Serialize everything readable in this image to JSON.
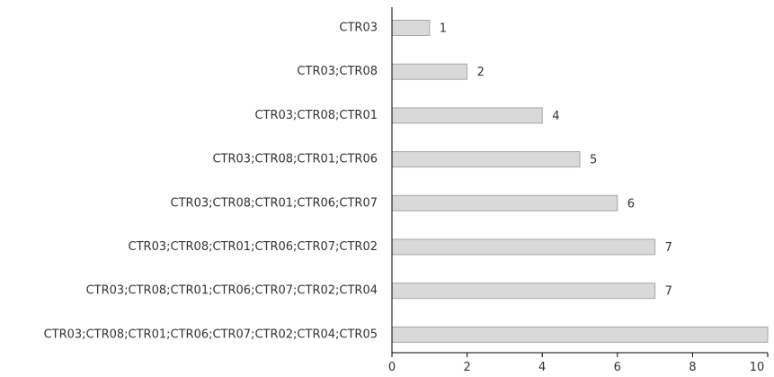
{
  "chart_data": {
    "type": "bar",
    "orientation": "horizontal",
    "categories": [
      "CTR03",
      "CTR03;CTR08",
      "CTR03;CTR08;CTR01",
      "CTR03;CTR08;CTR01;CTR06",
      "CTR03;CTR08;CTR01;CTR06;CTR07",
      "CTR03;CTR08;CTR01;CTR06;CTR07;CTR02",
      "CTR03;CTR08;CTR01;CTR06;CTR07;CTR02;CTR04",
      "CTR03;CTR08;CTR01;CTR06;CTR07;CTR02;CTR04;CTR05"
    ],
    "values": [
      1,
      2,
      4,
      5,
      6,
      7,
      7,
      10
    ],
    "data_labels": [
      "1",
      "2",
      "4",
      "5",
      "6",
      "7",
      "7",
      ""
    ],
    "title": "",
    "xlabel": "",
    "ylabel": "",
    "xlim": [
      0,
      10
    ],
    "x_ticks": [
      0,
      2,
      4,
      6,
      8,
      10
    ],
    "x_tick_labels": [
      "0",
      "2",
      "4",
      "6",
      "8",
      "10"
    ],
    "grid": false,
    "legend": "none",
    "colors": {
      "bar_fill": "#d9d9d9",
      "bar_stroke": "#a6a6a6",
      "axis": "#000000",
      "text": "#333333"
    }
  }
}
